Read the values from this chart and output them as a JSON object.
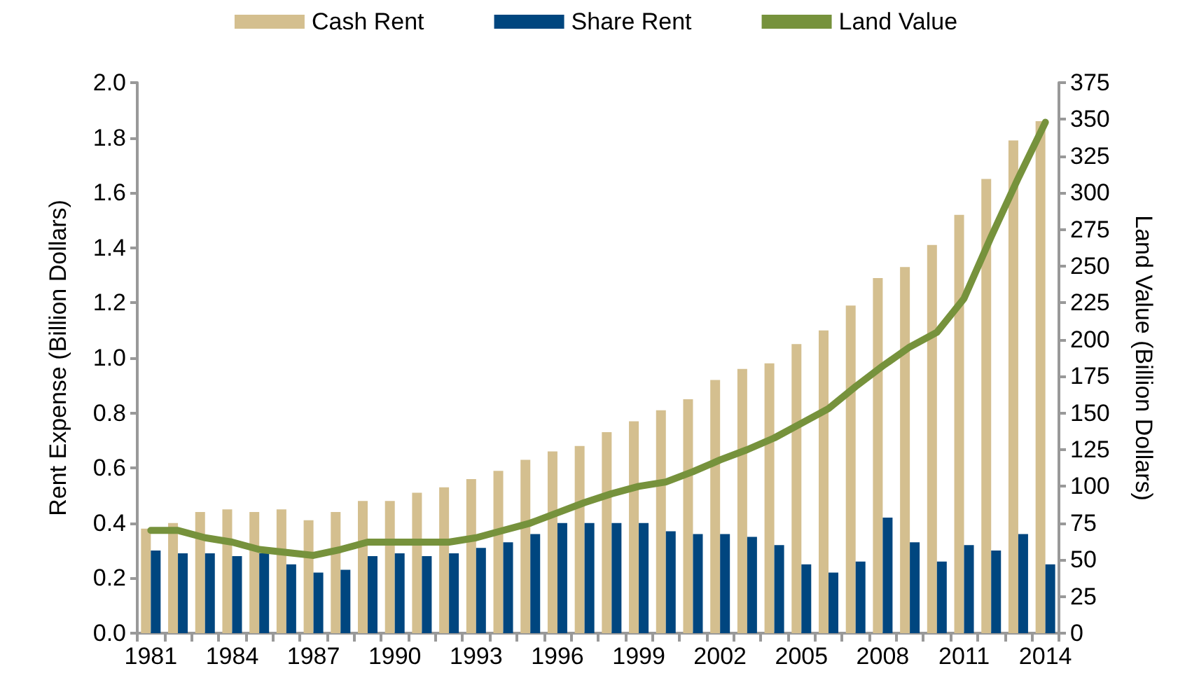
{
  "chart_data": {
    "type": "bar",
    "ylabel": "Rent Expense (Billion Dollars)",
    "y2label": "Land Value (Billion Dollars)",
    "categories": [
      "1981",
      null,
      null,
      "1984",
      null,
      null,
      "1987",
      null,
      null,
      "1990",
      null,
      null,
      "1993",
      null,
      null,
      "1996",
      null,
      null,
      "1999",
      null,
      null,
      "2002",
      null,
      null,
      "2005",
      null,
      null,
      "2008",
      null,
      null,
      "2011",
      null,
      null,
      "2014"
    ],
    "series": [
      {
        "name": "Cash Rent",
        "color": "#d4bf8f",
        "values": [
          0.38,
          0.4,
          0.44,
          0.45,
          0.44,
          0.45,
          0.41,
          0.44,
          0.48,
          0.48,
          0.51,
          0.53,
          0.56,
          0.59,
          0.63,
          0.66,
          0.68,
          0.73,
          0.77,
          0.81,
          0.85,
          0.92,
          0.96,
          0.98,
          1.05,
          1.1,
          1.19,
          1.29,
          1.33,
          1.41,
          1.52,
          1.65,
          1.79,
          1.86
        ]
      },
      {
        "name": "Share Rent",
        "color": "#00467f",
        "values": [
          0.3,
          0.29,
          0.29,
          0.28,
          0.29,
          0.25,
          0.22,
          0.23,
          0.28,
          0.29,
          0.28,
          0.29,
          0.31,
          0.33,
          0.36,
          0.4,
          0.4,
          0.4,
          0.4,
          0.37,
          0.36,
          0.36,
          0.35,
          0.32,
          0.25,
          0.22,
          0.26,
          0.42,
          0.33,
          0.26,
          0.32,
          0.3,
          0.36,
          0.25
        ]
      },
      {
        "name": "Land Value",
        "type": "line",
        "axis": "y2",
        "color": "#76923c",
        "values": [
          70,
          70,
          65,
          62,
          57,
          55,
          53,
          57,
          62,
          62,
          62,
          62,
          65,
          70,
          75,
          82,
          89,
          95,
          100,
          103,
          110,
          118,
          125,
          133,
          143,
          153,
          168,
          182,
          195,
          205,
          228,
          270,
          310,
          348
        ]
      }
    ],
    "ylim": [
      0,
      2.0
    ],
    "yticks": [
      {
        "value": 0,
        "label": "0.0"
      },
      {
        "value": 0.2,
        "label": "0.2"
      },
      {
        "value": 0.4,
        "label": "0.4"
      },
      {
        "value": 0.6,
        "label": "0.6"
      },
      {
        "value": 0.8,
        "label": "0.8"
      },
      {
        "value": 1.0,
        "label": "1.0"
      },
      {
        "value": 1.2,
        "label": "1.2"
      },
      {
        "value": 1.4,
        "label": "1.4"
      },
      {
        "value": 1.6,
        "label": "1.6"
      },
      {
        "value": 1.8,
        "label": "1.8"
      },
      {
        "value": 2.0,
        "label": "2.0"
      }
    ],
    "y2lim": [
      0,
      375
    ],
    "y2ticks": [
      0,
      25,
      50,
      75,
      100,
      125,
      150,
      175,
      200,
      225,
      250,
      275,
      300,
      325,
      350,
      375
    ],
    "legend": "top",
    "grid": false,
    "marker": "none",
    "line_style": "solid"
  }
}
